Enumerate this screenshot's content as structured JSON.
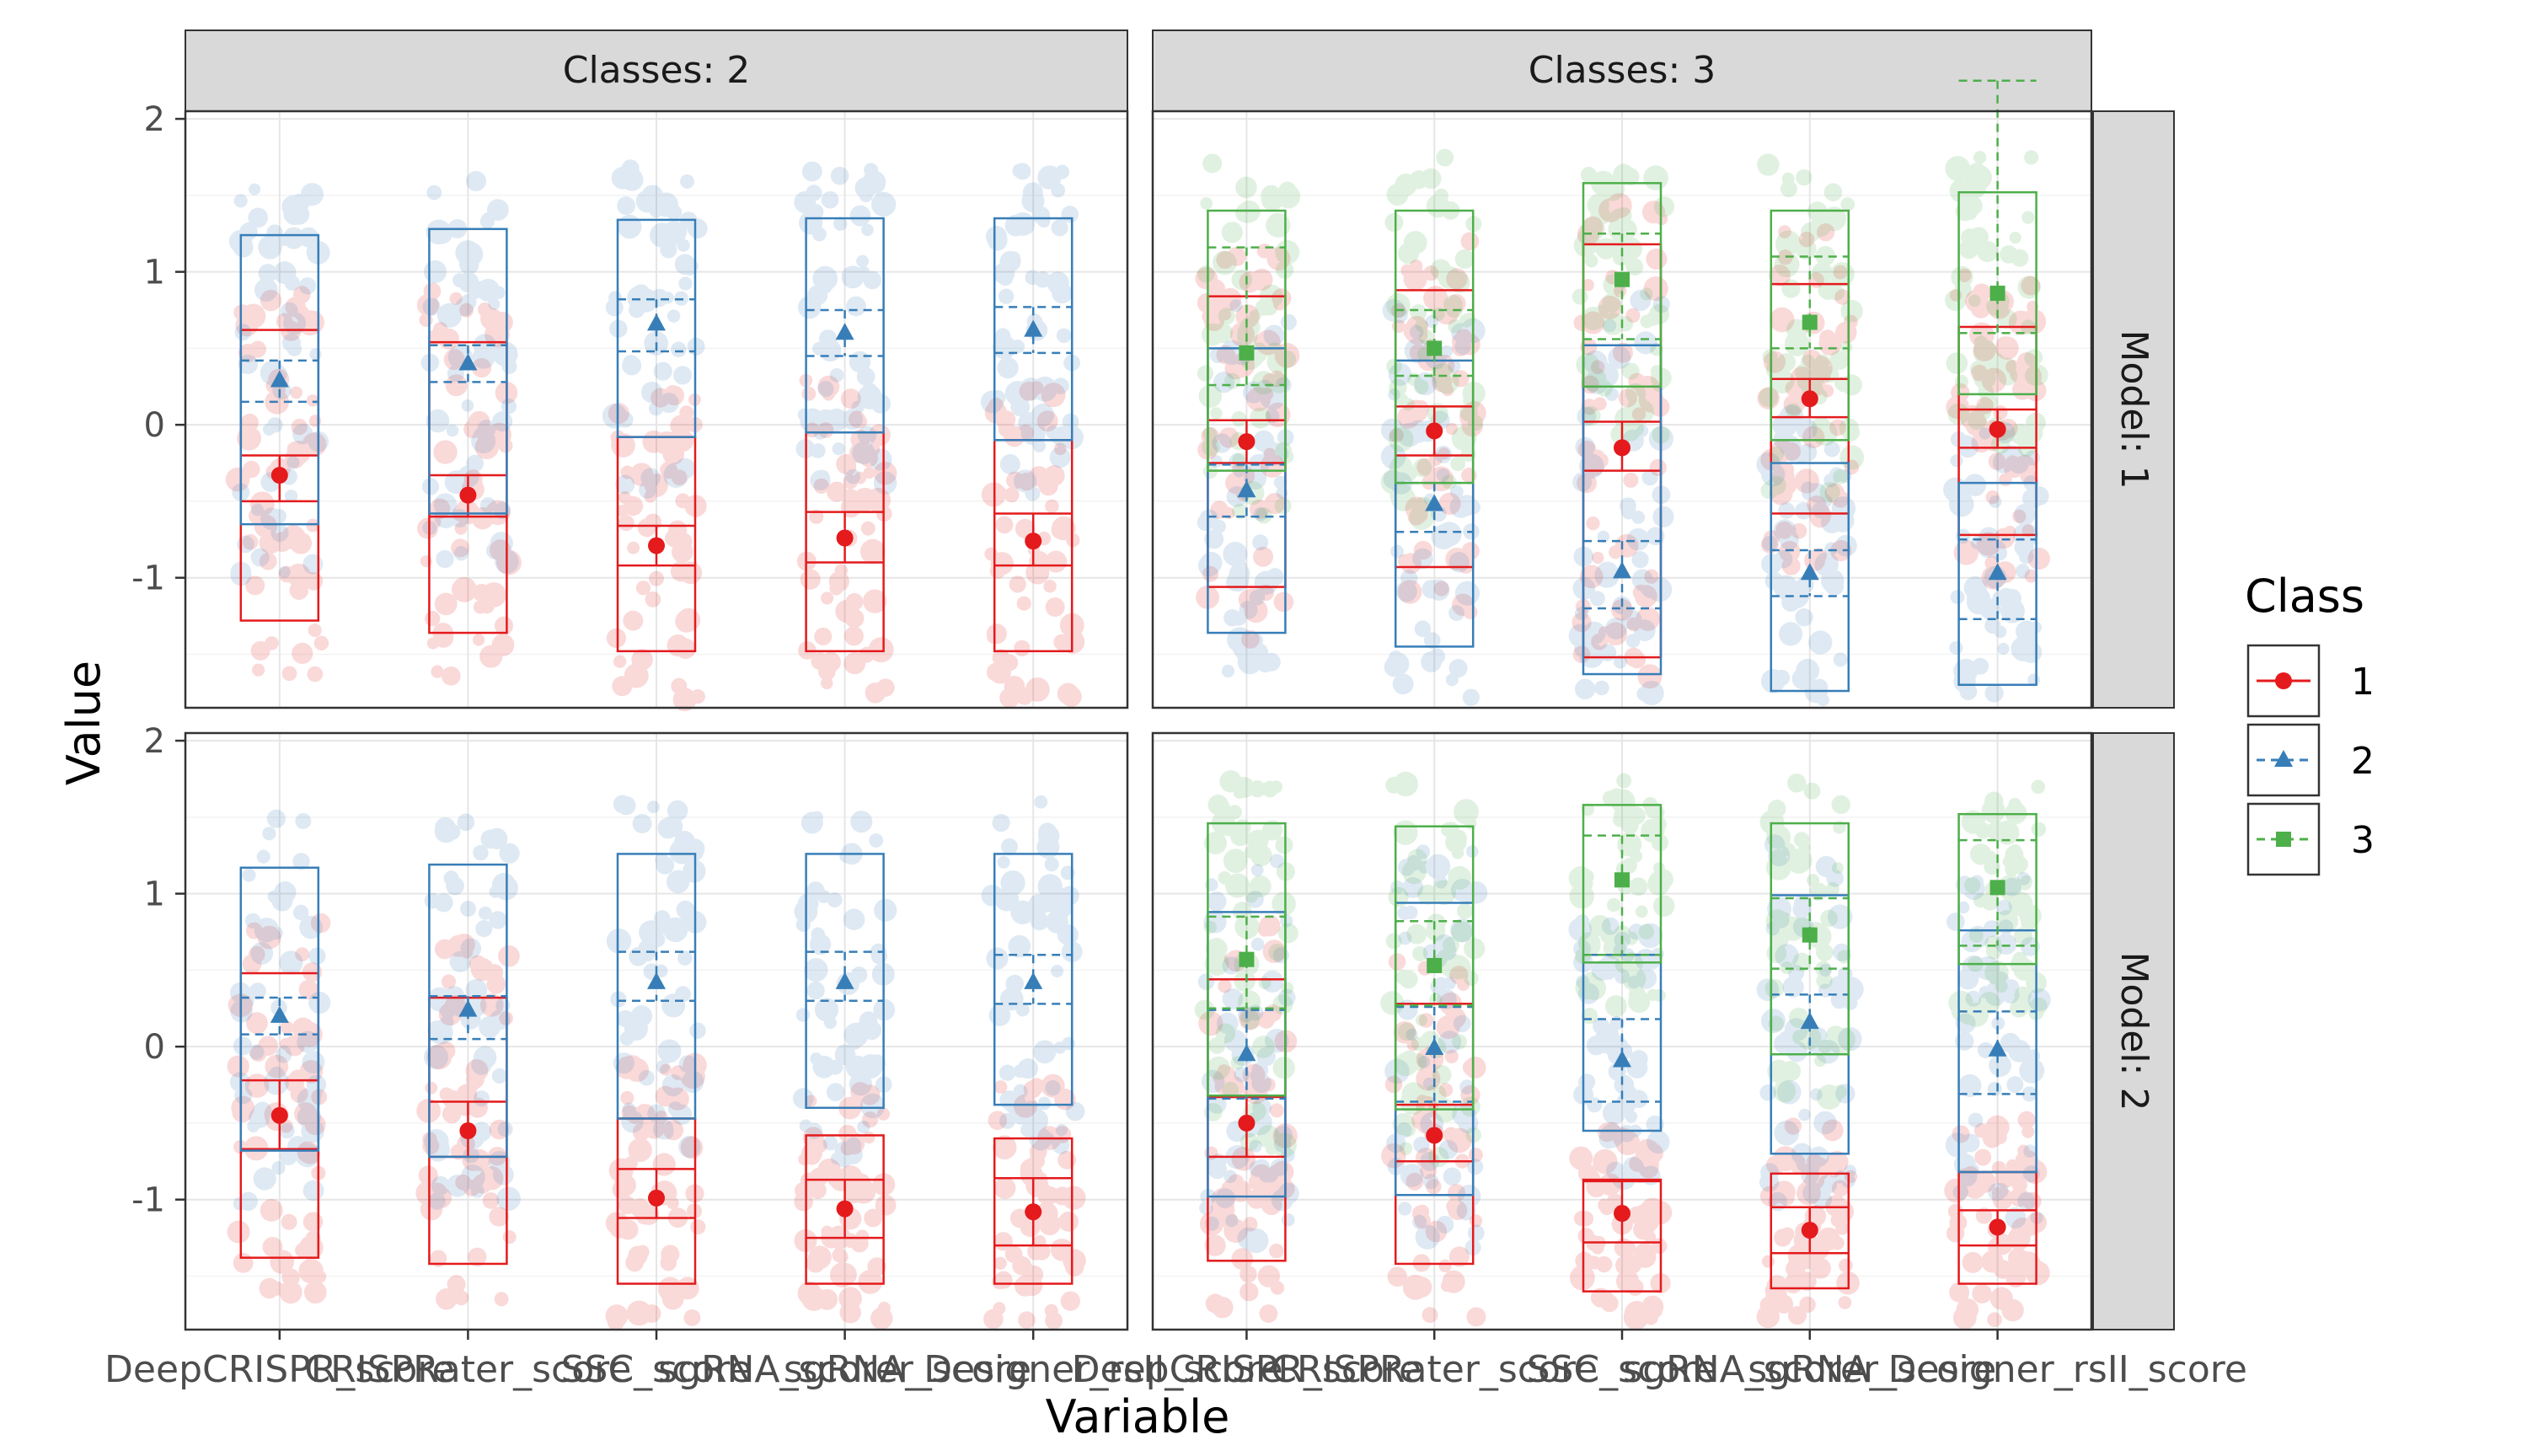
{
  "chart_data": {
    "type": "box-interval-facet",
    "xlabel": "Variable",
    "ylabel": "Value",
    "categories": [
      "DeepCRISPR_score",
      "CRISPRater_score",
      "SSC_score",
      "sgRNA_scorer_score",
      "sgRNA_Designer_rsII_score"
    ],
    "ylim": [
      -1.85,
      2.05
    ],
    "y_ticks": [
      -1,
      0,
      1,
      2
    ],
    "grid": true,
    "col_strips": [
      "Classes: 2",
      "Classes: 3"
    ],
    "row_strips": [
      "Model: 1",
      "Model: 2"
    ],
    "legend": {
      "title": "Class",
      "position": "right",
      "items": [
        {
          "label": "1",
          "color": "#e41a1c",
          "shape": "circle",
          "line": "solid"
        },
        {
          "label": "2",
          "color": "#377eb8",
          "shape": "triangle",
          "line": "dashed"
        },
        {
          "label": "3",
          "color": "#4daf4a",
          "shape": "square",
          "line": "dashed"
        }
      ]
    },
    "panels": [
      {
        "row": 0,
        "col": 0,
        "series": [
          {
            "class": "1",
            "mean": [
              -0.33,
              -0.46,
              -0.79,
              -0.74,
              -0.76
            ],
            "box_low": [
              -1.28,
              -1.36,
              -1.48,
              -1.48,
              -1.48
            ],
            "box_high": [
              0.62,
              0.54,
              -0.08,
              -0.05,
              -0.1
            ],
            "ci_low": [
              -0.5,
              -0.6,
              -0.92,
              -0.9,
              -0.92
            ],
            "ci_high": [
              -0.2,
              -0.33,
              -0.66,
              -0.57,
              -0.58
            ]
          },
          {
            "class": "2",
            "mean": [
              0.29,
              0.4,
              0.66,
              0.6,
              0.62
            ],
            "box_low": [
              -0.65,
              -0.58,
              -0.08,
              -0.05,
              -0.1
            ],
            "box_high": [
              1.24,
              1.28,
              1.34,
              1.35,
              1.35
            ],
            "ci_low": [
              0.15,
              0.28,
              0.48,
              0.45,
              0.47
            ],
            "ci_high": [
              0.42,
              0.52,
              0.82,
              0.75,
              0.77
            ]
          }
        ]
      },
      {
        "row": 0,
        "col": 1,
        "series": [
          {
            "class": "1",
            "mean": [
              -0.11,
              -0.04,
              -0.15,
              0.17,
              -0.03
            ],
            "box_low": [
              -1.06,
              -0.93,
              -1.52,
              -0.58,
              -0.72
            ],
            "box_high": [
              0.84,
              0.88,
              1.18,
              0.92,
              0.64
            ],
            "ci_low": [
              -0.25,
              -0.2,
              -0.3,
              0.05,
              -0.15
            ],
            "ci_high": [
              0.03,
              0.12,
              0.02,
              0.3,
              0.1
            ]
          },
          {
            "class": "2",
            "mean": [
              -0.43,
              -0.52,
              -0.96,
              -0.97,
              -0.97
            ],
            "box_low": [
              -1.36,
              -1.45,
              -1.63,
              -1.74,
              -1.7
            ],
            "box_high": [
              0.5,
              0.42,
              0.52,
              -0.25,
              -0.38
            ],
            "ci_low": [
              -0.6,
              -0.7,
              -1.2,
              -1.12,
              -1.27
            ],
            "ci_high": [
              -0.26,
              -0.38,
              -0.76,
              -0.82,
              -0.75
            ]
          },
          {
            "class": "3",
            "mean": [
              0.47,
              0.5,
              0.95,
              0.67,
              0.86
            ],
            "box_low": [
              -0.3,
              -0.38,
              0.25,
              -0.1,
              0.2
            ],
            "box_high": [
              1.4,
              1.4,
              1.58,
              1.4,
              1.52
            ],
            "ci_low": [
              0.26,
              0.32,
              0.56,
              0.5,
              0.6
            ],
            "ci_high": [
              1.16,
              0.75,
              1.25,
              1.1,
              2.25
            ]
          }
        ]
      },
      {
        "row": 1,
        "col": 0,
        "series": [
          {
            "class": "1",
            "mean": [
              -0.45,
              -0.55,
              -0.99,
              -1.06,
              -1.08
            ],
            "box_low": [
              -1.38,
              -1.42,
              -1.55,
              -1.55,
              -1.55
            ],
            "box_high": [
              0.48,
              0.32,
              -0.47,
              -0.58,
              -0.6
            ],
            "ci_low": [
              -0.67,
              -0.72,
              -1.12,
              -1.25,
              -1.3
            ],
            "ci_high": [
              -0.22,
              -0.36,
              -0.8,
              -0.87,
              -0.86
            ]
          },
          {
            "class": "2",
            "mean": [
              0.2,
              0.24,
              0.42,
              0.42,
              0.42
            ],
            "box_low": [
              -0.68,
              -0.72,
              -0.47,
              -0.4,
              -0.38
            ],
            "box_high": [
              1.17,
              1.19,
              1.26,
              1.26,
              1.26
            ],
            "ci_low": [
              0.08,
              0.05,
              0.3,
              0.3,
              0.28
            ],
            "ci_high": [
              0.32,
              0.33,
              0.62,
              0.62,
              0.6
            ]
          }
        ]
      },
      {
        "row": 1,
        "col": 1,
        "series": [
          {
            "class": "1",
            "mean": [
              -0.5,
              -0.58,
              -1.09,
              -1.2,
              -1.18
            ],
            "box_low": [
              -1.4,
              -1.42,
              -1.6,
              -1.58,
              -1.55
            ],
            "box_high": [
              0.44,
              0.28,
              -0.87,
              -0.83,
              -0.82
            ],
            "ci_low": [
              -0.72,
              -0.75,
              -1.28,
              -1.35,
              -1.3
            ],
            "ci_high": [
              -0.33,
              -0.38,
              -0.88,
              -1.05,
              -1.07
            ]
          },
          {
            "class": "2",
            "mean": [
              -0.05,
              -0.01,
              -0.09,
              0.16,
              -0.02
            ],
            "box_low": [
              -0.98,
              -0.97,
              -0.55,
              -0.7,
              -0.82
            ],
            "box_high": [
              0.88,
              0.94,
              0.6,
              0.99,
              0.76
            ],
            "ci_low": [
              -0.34,
              -0.36,
              -0.36,
              -0.05,
              -0.31
            ],
            "ci_high": [
              0.24,
              0.26,
              0.18,
              0.34,
              0.23
            ]
          },
          {
            "class": "3",
            "mean": [
              0.57,
              0.53,
              1.09,
              0.73,
              1.04
            ],
            "box_low": [
              -0.32,
              -0.41,
              0.55,
              -0.05,
              0.54
            ],
            "box_high": [
              1.46,
              1.44,
              1.58,
              1.46,
              1.52
            ],
            "ci_low": [
              0.25,
              0.27,
              0.6,
              0.51,
              0.66
            ],
            "ci_high": [
              0.85,
              0.82,
              1.38,
              0.97,
              1.35
            ]
          }
        ]
      }
    ]
  }
}
